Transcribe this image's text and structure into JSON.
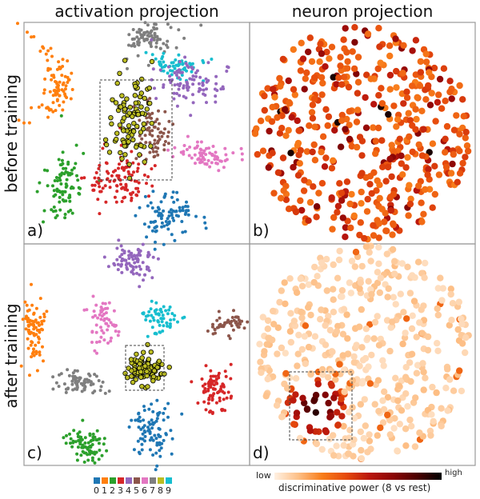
{
  "column_titles": [
    "activation projection",
    "neuron projection"
  ],
  "row_titles": [
    "before training",
    "after training"
  ],
  "panel_labels": [
    "a)",
    "b)",
    "c)",
    "d)"
  ],
  "chart_data": {
    "type": "scatter",
    "panels": [
      {
        "label": "a)",
        "kind": "activation projection",
        "stage": "before training",
        "highlight_class": "8",
        "highlight_box": "dashed"
      },
      {
        "label": "b)",
        "kind": "neuron projection",
        "stage": "before training"
      },
      {
        "label": "c)",
        "kind": "activation projection",
        "stage": "after training",
        "highlight_class": "8",
        "highlight_box": "dashed"
      },
      {
        "label": "d)",
        "kind": "neuron projection",
        "stage": "after training",
        "highlight_box": "dashed"
      }
    ],
    "legend": {
      "classes": [
        "0",
        "1",
        "2",
        "3",
        "4",
        "5",
        "6",
        "7",
        "8",
        "9"
      ],
      "colors": [
        "#1f77b4",
        "#ff7f0e",
        "#2ca02c",
        "#d62728",
        "#9467bd",
        "#8c564b",
        "#e377c2",
        "#7f7f7f",
        "#bcbd22",
        "#17becf"
      ],
      "placement": "bottom-left"
    },
    "colorbar": {
      "low_label": "low",
      "high_label": "high",
      "title": "discriminative power (8 vs rest)",
      "placement": "bottom-right"
    },
    "axes": "none",
    "grid": false
  }
}
